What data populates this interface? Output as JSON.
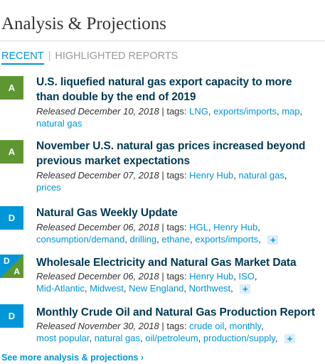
{
  "section_title": "Analysis & Projections",
  "tabs": [
    {
      "label": "RECENT",
      "active": true
    },
    {
      "label": "HIGHLIGHTED REPORTS",
      "active": false
    }
  ],
  "tab_separator": "|",
  "articles": [
    {
      "badge": "A",
      "title_lines": [
        "U.S. liquefied natural gas export capacity to more",
        "than double by the end of 2019"
      ],
      "released": "Released December 10, 2018",
      "tags_label": " | tags: ",
      "tags": [
        "LNG",
        "exports/imports",
        "map",
        "natural gas"
      ],
      "has_more": false
    },
    {
      "badge": "A",
      "title_lines": [
        "November U.S. natural gas prices increased beyond",
        "previous market expectations"
      ],
      "released": "Released December 07, 2018",
      "tags_label": " | tags: ",
      "tags": [
        "Henry Hub",
        "natural gas",
        "prices"
      ],
      "has_more": false
    },
    {
      "badge": "D",
      "title_lines": [
        "Natural Gas Weekly Update"
      ],
      "released": "Released December 06, 2018",
      "tags_label": " | tags: ",
      "tags": [
        "HGL",
        "Henry Hub",
        "consumption/demand",
        "drilling",
        "ethane",
        "exports/imports"
      ],
      "has_more": true
    },
    {
      "badge_top": "D",
      "badge_bottom": "A",
      "title_lines": [
        "Wholesale Electricity and Natural Gas Market Data"
      ],
      "released": "Released December 06, 2018",
      "tags_label": " | tags: ",
      "tags": [
        "Henry Hub",
        "ISO",
        "Mid-Atlantic",
        "Midwest",
        "New England",
        "Northwest"
      ],
      "has_more": true
    },
    {
      "badge": "D",
      "title_lines": [
        "Monthly Crude Oil and Natural Gas Production Report"
      ],
      "released": "Released November 30, 2018",
      "tags_label": " | tags: ",
      "tags": [
        "crude oil",
        "monthly",
        "most popular",
        "natural gas",
        "oil/petroleum",
        "production/supply"
      ],
      "has_more": true
    }
  ],
  "more_symbol": "+",
  "see_more": "See more analysis & projections ›",
  "colors": {
    "accent": "#0096d7",
    "analysis_green": "#5e9732",
    "title_navy": "#003953"
  }
}
